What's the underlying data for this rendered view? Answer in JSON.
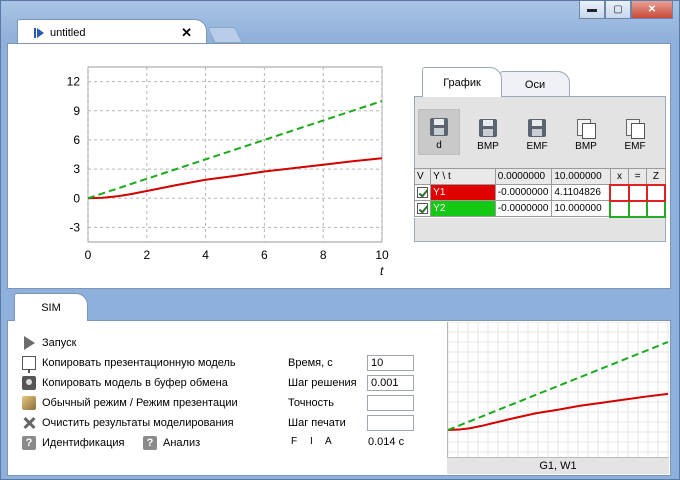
{
  "window": {
    "tab_title": "untitled",
    "close_glyph": "✕",
    "controls": {
      "minimize": "▬",
      "maximize": "▢",
      "close": "✕"
    }
  },
  "chart_data": {
    "type": "line",
    "xlabel": "t",
    "ylabel": "",
    "xlim": [
      0,
      10
    ],
    "ylim": [
      -4.5,
      13.5
    ],
    "x_ticks": [
      "0",
      "2",
      "4",
      "6",
      "8",
      "10"
    ],
    "y_ticks": [
      "12",
      "9",
      "6",
      "3",
      "0",
      "-3"
    ],
    "grid": true,
    "series": [
      {
        "color": "#d40000",
        "style": "solid",
        "x": [
          0,
          0.5,
          1,
          1.5,
          2,
          3,
          4,
          5,
          6,
          7,
          8,
          9,
          10
        ],
        "y": [
          0,
          0.05,
          0.2,
          0.45,
          0.75,
          1.35,
          1.9,
          2.3,
          2.75,
          3.1,
          3.45,
          3.8,
          4.11
        ]
      },
      {
        "color": "#1aaa1a",
        "style": "dashed",
        "x": [
          0,
          10
        ],
        "y": [
          0,
          10
        ]
      }
    ]
  },
  "right_panel": {
    "tabs": [
      "График",
      "Оси"
    ],
    "tools": [
      {
        "label": "d",
        "icon": "floppy-icon",
        "active": true
      },
      {
        "label": "BMP",
        "icon": "floppy-icon",
        "active": false
      },
      {
        "label": "EMF",
        "icon": "floppy-icon",
        "active": false
      },
      {
        "label": "BMP",
        "icon": "copy-docs-icon",
        "active": false
      },
      {
        "label": "EMF",
        "icon": "copy-docs-icon",
        "active": false
      }
    ],
    "grid_headers": [
      "V",
      "Y \\ t",
      "0.0000000",
      "10.000000",
      "x",
      "=",
      "Z"
    ],
    "rows": [
      {
        "name": "Y1",
        "v0": "-0.0000000",
        "v1": "4.1104826",
        "color": "#e00000"
      },
      {
        "name": "Y2",
        "v0": "-0.0000000",
        "v1": "10.000000",
        "color": "#14c814"
      }
    ]
  },
  "sim": {
    "tab_label": "SIM",
    "commands": [
      {
        "label": "Запуск",
        "icon": "play-icon"
      },
      {
        "label": "Копировать презентационную модель",
        "icon": "presentation-icon"
      },
      {
        "label": "Копировать модель в буфер обмена",
        "icon": "camera-icon"
      },
      {
        "label": "Обычный режим / Режим презентации",
        "icon": "mode-icon"
      },
      {
        "label": "Очистить результаты моделирования",
        "icon": "clear-icon"
      }
    ],
    "help_items": [
      {
        "label": "Идентификация",
        "icon": "help-icon"
      },
      {
        "label": "Анализ",
        "icon": "help-icon"
      }
    ],
    "params": [
      {
        "label": "Время, с",
        "value": "10"
      },
      {
        "label": "Шаг решения",
        "value": "0.001"
      },
      {
        "label": "Точность",
        "value": ""
      },
      {
        "label": "Шаг печати",
        "value": ""
      }
    ],
    "flags": [
      "F",
      "I",
      "A"
    ],
    "elapsed": "0.014 с",
    "preview_caption": "G1, W1"
  }
}
